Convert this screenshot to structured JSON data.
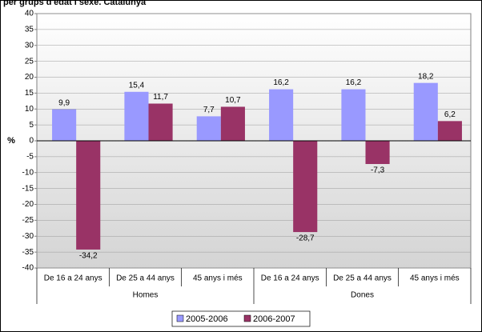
{
  "chart_data": {
    "type": "bar",
    "title": "per grups d'edat i sexe. Catalunya",
    "y_label": "%",
    "categories": [
      "De 16 a 24 anys",
      "De 25 a 44 anys",
      "45 anys i més",
      "De 16 a 24 anys",
      "De 25 a 44 anys",
      "45 anys i més"
    ],
    "groups": [
      "Homes",
      "Dones"
    ],
    "series": [
      {
        "name": "2005-2006",
        "color": "#9999ff",
        "values": [
          9.9,
          15.4,
          7.7,
          16.2,
          16.2,
          18.2
        ],
        "value_labels": [
          "9,9",
          "15,4",
          "7,7",
          "16,2",
          "16,2",
          "18,2"
        ]
      },
      {
        "name": "2006-2007",
        "color": "#993366",
        "values": [
          -34.2,
          11.7,
          10.7,
          -28.7,
          -7.3,
          6.2
        ],
        "value_labels": [
          "-34,2",
          "11,7",
          "10,7",
          "-28,7",
          "-7,3",
          "6,2"
        ]
      }
    ],
    "ylim": [
      -40,
      40
    ],
    "yticks": [
      -40,
      -35,
      -30,
      -25,
      -20,
      -15,
      -10,
      -5,
      0,
      5,
      10,
      15,
      20,
      25,
      30,
      35,
      40
    ],
    "grid": true,
    "legend": "bottom"
  }
}
